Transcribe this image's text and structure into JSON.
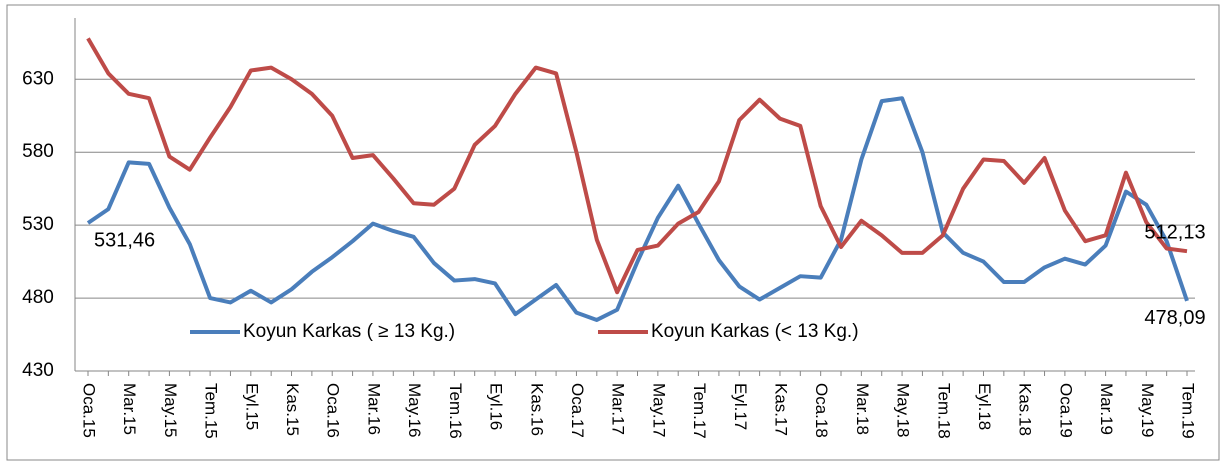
{
  "chart_data": {
    "type": "line",
    "categories": [
      "Oca.15",
      null,
      "Mar.15",
      null,
      "May.15",
      null,
      "Tem.15",
      null,
      "Eyl.15",
      null,
      "Kas.15",
      null,
      "Oca.16",
      null,
      "Mar.16",
      null,
      "May.16",
      null,
      "Tem.16",
      null,
      "Eyl.16",
      null,
      "Kas.16",
      null,
      "Oca.17",
      null,
      "Mar.17",
      null,
      "May.17",
      null,
      "Tem.17",
      null,
      "Eyl.17",
      null,
      "Kas.17",
      null,
      "Oca.18",
      null,
      "Mar.18",
      null,
      "May.18",
      null,
      "Tem.18",
      null,
      "Eyl.18",
      null,
      "Kas.18",
      null,
      "Oca.19",
      null,
      "Mar.19",
      null,
      "May.19",
      null,
      "Tem.19"
    ],
    "series": [
      {
        "name": "Koyun Karkas  ( ≥ 13 Kg.)",
        "color": "#4a7ebb",
        "values": [
          531.46,
          541,
          573,
          572,
          542,
          517,
          480,
          477,
          485,
          477,
          486,
          498,
          508,
          519,
          531,
          526,
          522,
          504,
          492,
          493,
          490,
          469,
          479,
          489,
          470,
          465,
          472,
          505,
          535,
          557,
          531,
          506,
          488,
          479,
          487,
          495,
          494,
          520,
          575,
          615,
          617,
          580,
          525,
          511,
          505,
          491,
          491,
          501,
          507,
          503,
          516,
          553,
          544,
          519,
          478.09
        ],
        "value_labels": [
          "531,46",
          null,
          null,
          null,
          null,
          null,
          null,
          null,
          null,
          null,
          null,
          null,
          null,
          null,
          null,
          null,
          null,
          null,
          null,
          null,
          null,
          null,
          null,
          null,
          null,
          null,
          null,
          null,
          null,
          null,
          null,
          null,
          null,
          null,
          null,
          null,
          null,
          null,
          null,
          null,
          null,
          null,
          null,
          null,
          null,
          null,
          null,
          null,
          null,
          null,
          null,
          null,
          null,
          null,
          "478,09"
        ]
      },
      {
        "name": "Koyun Karkas (< 13 Kg.)",
        "color": "#be4b48",
        "values": [
          658,
          634,
          620,
          617,
          577,
          568,
          590,
          611,
          636,
          638,
          630,
          620,
          605,
          576,
          578,
          562,
          545,
          544,
          555,
          585,
          598,
          620,
          638,
          634,
          580,
          520,
          484,
          513,
          516,
          531,
          539,
          560,
          602,
          616,
          603,
          598,
          543,
          515,
          533,
          523,
          511,
          511,
          523,
          555,
          575,
          574,
          559,
          576,
          540,
          519,
          523,
          566,
          532,
          514,
          512.13
        ],
        "value_labels": [
          null,
          null,
          null,
          null,
          null,
          null,
          null,
          null,
          null,
          null,
          null,
          null,
          null,
          null,
          null,
          null,
          null,
          null,
          null,
          null,
          null,
          null,
          null,
          null,
          null,
          null,
          null,
          null,
          null,
          null,
          null,
          null,
          null,
          null,
          null,
          null,
          null,
          null,
          null,
          null,
          null,
          null,
          null,
          null,
          null,
          null,
          null,
          null,
          null,
          null,
          null,
          null,
          null,
          null,
          "512,13"
        ]
      }
    ],
    "ylim": [
      430,
      672
    ],
    "yticks": [
      430,
      480,
      530,
      580,
      630
    ],
    "grid": true,
    "legend": "bottom"
  }
}
